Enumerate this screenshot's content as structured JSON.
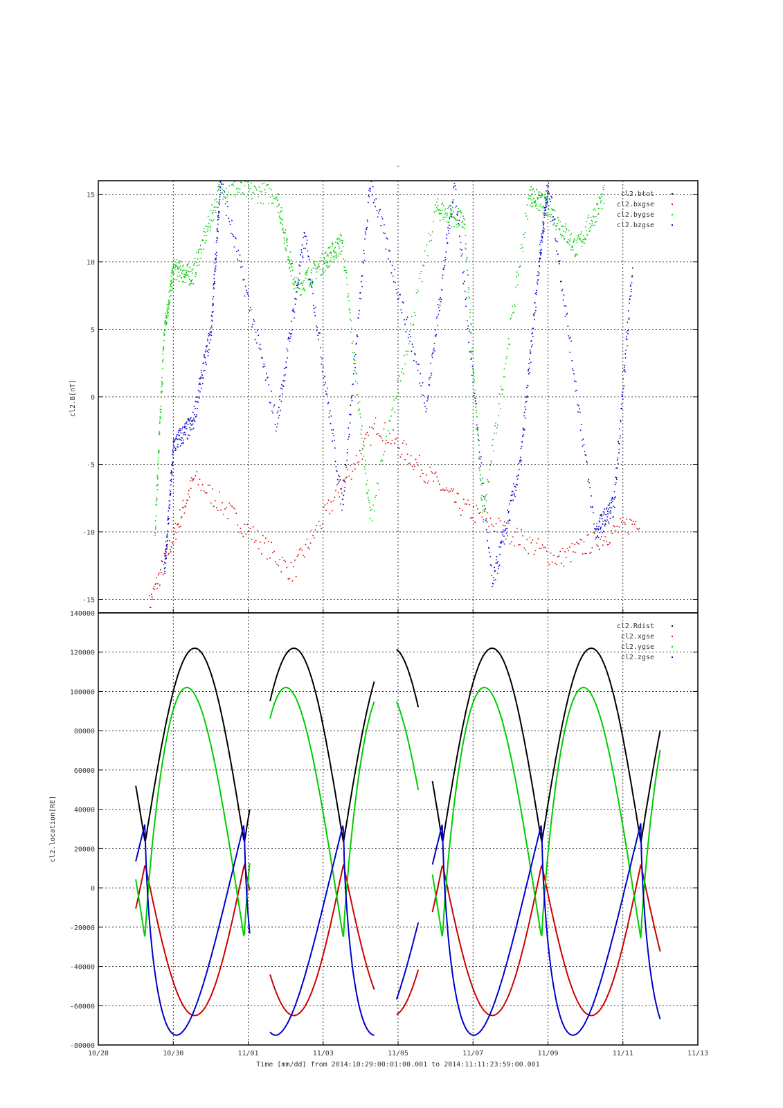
{
  "title": "-",
  "xaxis": {
    "label": "Time [mm/dd]  from 2014:10:29:00:01:00.001  to  2014:11:11:23:59:00.001",
    "range": [
      "10/28",
      "11/13"
    ],
    "tick_labels": [
      "10/28",
      "10/30",
      "11/01",
      "11/03",
      "11/05",
      "11/07",
      "11/09",
      "11/11",
      "11/13"
    ]
  },
  "chart_data": [
    {
      "type": "scatter",
      "ylabel": "cl2.B[nT]",
      "ylim": [
        -16,
        16
      ],
      "yticks": [
        -15,
        -10,
        -5,
        0,
        5,
        10,
        15
      ],
      "grid": true,
      "legend_position": "top-right",
      "series": [
        {
          "name": "cl2.btot",
          "color": "#000000"
        },
        {
          "name": "cl2.bxgse",
          "color": "#cc0000",
          "x": [
            "10/29 08:00",
            "10/30 13:00",
            "11/02 04:00",
            "11/04 10:00",
            "11/06 15:00",
            "11/09 06:00",
            "11/11 11:00"
          ],
          "y": [
            -15.5,
            -6,
            -13,
            -2,
            -8,
            -12,
            -9
          ]
        },
        {
          "name": "cl2.bygse",
          "color": "#00cc00",
          "x": [
            "10/29 12:00",
            "10/29 18:00",
            "10/30 00:00",
            "10/30 12:00",
            "10/31 06:00",
            "11/01 18:00",
            "11/02 06:00",
            "11/03 00:00",
            "11/03 12:00",
            "11/04 06:00",
            "11/06 00:00",
            "11/06 18:00",
            "11/07 06:00",
            "11/08 12:00",
            "11/09 00:00",
            "11/09 18:00",
            "11/10 12:00"
          ],
          "y": [
            -10,
            5,
            9.5,
            9,
            15.5,
            15,
            8,
            10,
            11.5,
            -9,
            14,
            13,
            -9,
            15,
            14,
            11,
            15
          ]
        },
        {
          "name": "cl2.bzgse",
          "color": "#0000cc",
          "x": [
            "10/29 18:00",
            "10/30 00:00",
            "10/30 12:00",
            "10/31 00:00",
            "10/31 06:00",
            "11/01 18:00",
            "11/02 12:00",
            "11/03 12:00",
            "11/04 06:00",
            "11/05 18:00",
            "11/06 12:00",
            "11/07 12:00",
            "11/08 06:00",
            "11/08 18:00",
            "11/09 00:00",
            "11/10 06:00",
            "11/10 18:00",
            "11/11 06:00"
          ],
          "y": [
            -13,
            -3.5,
            -2,
            5,
            16,
            -2,
            12,
            -8,
            16,
            -0.5,
            16,
            -14,
            -5,
            10,
            16,
            -10,
            -8,
            10
          ]
        }
      ]
    },
    {
      "type": "line",
      "ylabel": "cl2.location[RE]",
      "ylim": [
        -80000,
        140000
      ],
      "yticks": [
        -80000,
        -60000,
        -40000,
        -20000,
        0,
        20000,
        40000,
        60000,
        80000,
        100000,
        120000,
        140000
      ],
      "grid": true,
      "legend_position": "top-right",
      "series": [
        {
          "name": "cl2.Rdist",
          "color": "#000000"
        },
        {
          "name": "cl2.xgse",
          "color": "#cc0000"
        },
        {
          "name": "cl2.ygse",
          "color": "#00cc00"
        },
        {
          "name": "cl2.zgse",
          "color": "#0000cc"
        }
      ],
      "segments": [
        {
          "start": "10/29 00:00",
          "end": "11/01 01:00"
        },
        {
          "start": "11/01 14:00",
          "end": "11/04 09:00"
        },
        {
          "start": "11/04 23:00",
          "end": "11/05 13:00"
        },
        {
          "start": "11/05 22:00",
          "end": "11/11 23:59"
        }
      ],
      "orbit": {
        "period_hours": 63.5,
        "perigee_time": "10/29 06:00",
        "Rdist": {
          "min": 23000,
          "max": 122000
        },
        "xgse": {
          "min": -65000,
          "max": 12000
        },
        "ygse": {
          "min": -26000,
          "max": 102000
        },
        "zgse": {
          "min": -75000,
          "max": 33000
        }
      }
    }
  ]
}
